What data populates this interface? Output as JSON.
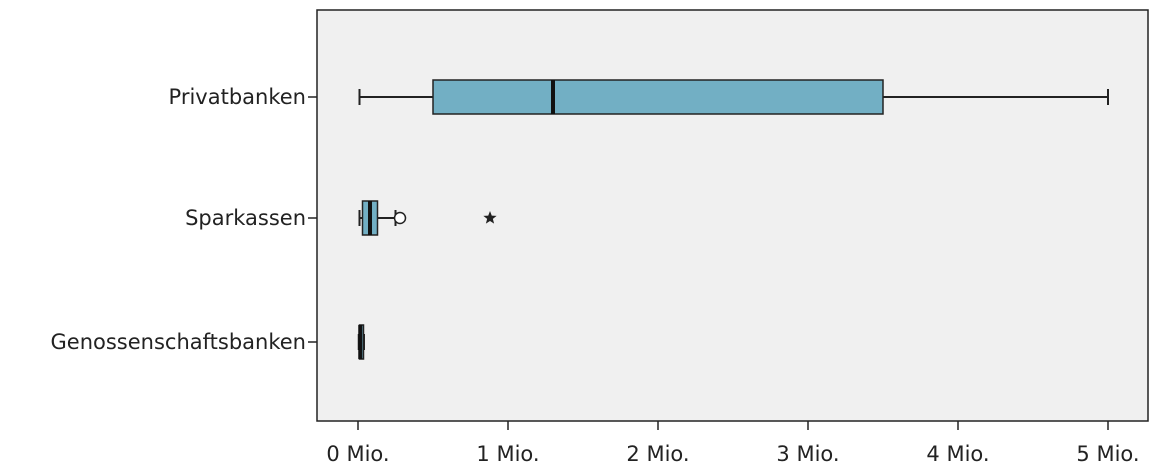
{
  "chart_data": {
    "type": "boxplot",
    "orientation": "horizontal",
    "title": "",
    "xlabel": "",
    "ylabel": "",
    "xlim": [
      -0.28,
      5.2
    ],
    "x_ticks": [
      0,
      1,
      2,
      3,
      4,
      5
    ],
    "x_tick_labels": [
      "0 Mio.",
      "1 Mio.",
      "2 Mio.",
      "3 Mio.",
      "4 Mio.",
      "5 Mio."
    ],
    "categories": [
      "Privatbanken",
      "Sparkassen",
      "Genossenschaftsbanken"
    ],
    "boxes": [
      {
        "category": "Privatbanken",
        "whisker_low": 0.01,
        "q1": 0.5,
        "median": 1.3,
        "q3": 3.5,
        "whisker_high": 5.0,
        "outliers": [],
        "extremes": []
      },
      {
        "category": "Sparkassen",
        "whisker_low": 0.01,
        "q1": 0.03,
        "median": 0.08,
        "q3": 0.13,
        "whisker_high": 0.25,
        "outliers": [
          0.28
        ],
        "extremes": [
          0.88
        ]
      },
      {
        "category": "Genossenschaftsbanken",
        "whisker_low": 0.005,
        "q1": 0.01,
        "median": 0.015,
        "q3": 0.03,
        "whisker_high": 0.04,
        "outliers": [],
        "extremes": []
      }
    ],
    "box_color": "#72afc4",
    "plot_background": "#f0f0f0",
    "grid": false,
    "legend": "none"
  }
}
